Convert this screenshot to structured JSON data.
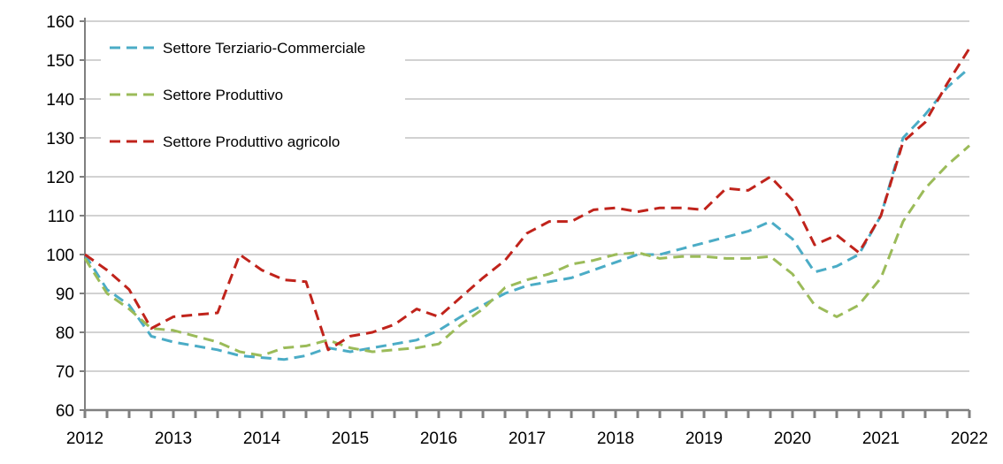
{
  "chart_data": {
    "type": "line",
    "title": "",
    "xlabel": "",
    "ylabel": "",
    "ylim": [
      60,
      160
    ],
    "yticks": [
      60,
      70,
      80,
      90,
      100,
      110,
      120,
      130,
      140,
      150,
      160
    ],
    "xlim": [
      2012,
      2022
    ],
    "xticks": [
      "2012",
      "2013",
      "2014",
      "2015",
      "2016",
      "2017",
      "2018",
      "2019",
      "2020",
      "2021",
      "2022"
    ],
    "grid": "horizontal",
    "legend_position": "top-left",
    "series": [
      {
        "name": "Settore Terziario-Commerciale",
        "color": "#4bacc6",
        "x": [
          2012,
          2012.25,
          2012.5,
          2012.75,
          2013,
          2013.25,
          2013.5,
          2013.75,
          2014,
          2014.25,
          2014.5,
          2014.75,
          2015,
          2015.25,
          2015.5,
          2015.75,
          2016,
          2016.25,
          2016.5,
          2016.75,
          2017,
          2017.25,
          2017.5,
          2017.75,
          2018,
          2018.25,
          2018.5,
          2018.75,
          2019,
          2019.25,
          2019.5,
          2019.75,
          2020,
          2020.25,
          2020.5,
          2020.75,
          2021,
          2021.25,
          2021.5,
          2021.75,
          2022
        ],
        "values": [
          100,
          91,
          87,
          79,
          77.5,
          76.5,
          75.5,
          74,
          73.5,
          73,
          74,
          76,
          75,
          76,
          77,
          78,
          80.5,
          84,
          87,
          90,
          92,
          93,
          94,
          96,
          98,
          100,
          100,
          101.5,
          103,
          104.5,
          106,
          108.5,
          104,
          95.5,
          97,
          100,
          110,
          130,
          136,
          143,
          148
        ]
      },
      {
        "name": "Settore Produttivo",
        "color": "#9bbb59",
        "x": [
          2012,
          2012.25,
          2012.5,
          2012.75,
          2013,
          2013.25,
          2013.5,
          2013.75,
          2014,
          2014.25,
          2014.5,
          2014.75,
          2015,
          2015.25,
          2015.5,
          2015.75,
          2016,
          2016.25,
          2016.5,
          2016.75,
          2017,
          2017.25,
          2017.5,
          2017.75,
          2018,
          2018.25,
          2018.5,
          2018.75,
          2019,
          2019.25,
          2019.5,
          2019.75,
          2020,
          2020.25,
          2020.5,
          2020.75,
          2021,
          2021.25,
          2021.5,
          2021.75,
          2022
        ],
        "values": [
          99,
          90,
          86,
          81,
          80.5,
          79,
          77.5,
          75,
          74,
          76,
          76.5,
          78,
          76,
          75,
          75.5,
          76,
          77,
          82,
          86,
          91.5,
          93.5,
          95,
          97.5,
          98.5,
          100,
          100.5,
          99,
          99.5,
          99.5,
          99,
          99,
          99.5,
          95,
          87,
          84,
          87,
          94,
          108.5,
          117,
          123,
          128
        ]
      },
      {
        "name": "Settore Produttivo agricolo",
        "color": "#c0231b",
        "x": [
          2012,
          2012.25,
          2012.5,
          2012.75,
          2013,
          2013.25,
          2013.5,
          2013.75,
          2014,
          2014.25,
          2014.5,
          2014.75,
          2015,
          2015.25,
          2015.5,
          2015.75,
          2016,
          2016.25,
          2016.5,
          2016.75,
          2017,
          2017.25,
          2017.5,
          2017.75,
          2018,
          2018.25,
          2018.5,
          2018.75,
          2019,
          2019.25,
          2019.5,
          2019.75,
          2020,
          2020.25,
          2020.5,
          2020.75,
          2021,
          2021.25,
          2021.5,
          2021.75,
          2022
        ],
        "values": [
          100,
          96,
          91,
          81,
          84,
          84.5,
          85,
          100,
          96,
          93.5,
          93,
          75.5,
          79,
          80,
          82,
          86,
          84,
          89,
          94,
          98.5,
          105.5,
          108.5,
          108.5,
          111.5,
          112,
          111,
          112,
          112,
          111.5,
          117,
          116.5,
          120,
          114,
          102.5,
          105,
          100.5,
          110,
          129,
          134,
          144,
          153
        ]
      }
    ]
  }
}
